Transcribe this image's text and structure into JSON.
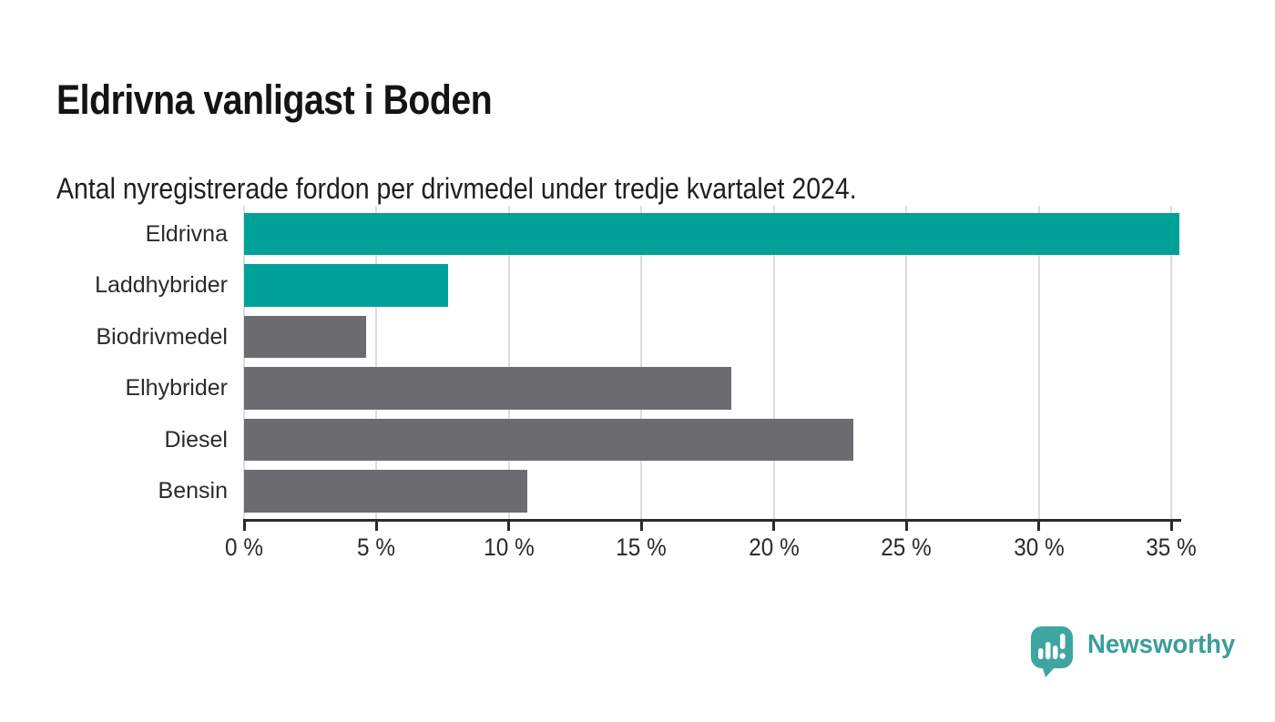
{
  "header": {
    "title": "Eldrivna vanligast i Boden",
    "subtitle": "Antal nyregistrerade fordon per drivmedel under tredje kvartalet 2024."
  },
  "chart_data": {
    "type": "bar",
    "orientation": "horizontal",
    "title": "Eldrivna vanligast i Boden",
    "subtitle": "Antal nyregistrerade fordon per drivmedel under tredje kvartalet 2024.",
    "categories": [
      "Eldrivna",
      "Laddhybrider",
      "Biodrivmedel",
      "Elhybrider",
      "Diesel",
      "Bensin"
    ],
    "values": [
      35.3,
      7.7,
      4.6,
      18.4,
      23,
      10.7
    ],
    "unit": "%",
    "xlim": [
      0,
      35.3
    ],
    "x_tick_values": [
      0,
      5,
      10,
      15,
      20,
      25,
      30,
      35
    ],
    "x_tick_labels": [
      "0 %",
      "5 %",
      "10 %",
      "15 %",
      "20 %",
      "25 %",
      "30 %",
      "35 %"
    ],
    "grid": true,
    "legend": "none",
    "bar_colors": [
      "#00a199",
      "#00a199",
      "#6c6b70",
      "#6c6b70",
      "#6c6b70",
      "#6c6b70"
    ]
  },
  "colors": {
    "accent_teal": "#00a199",
    "neutral_gray": "#6c6b70",
    "gridline": "#dcdcdc",
    "axis": "#2b2b2b",
    "title_text": "#141414",
    "label_text": "#2b2b2b",
    "brand_teal": "#3a9e9a",
    "logo_icon_teal": "#3fa5a1"
  },
  "footer": {
    "brand": "Newsworthy",
    "logo_icon": "newsworthy-speech-bubble-bar-chart-icon"
  }
}
